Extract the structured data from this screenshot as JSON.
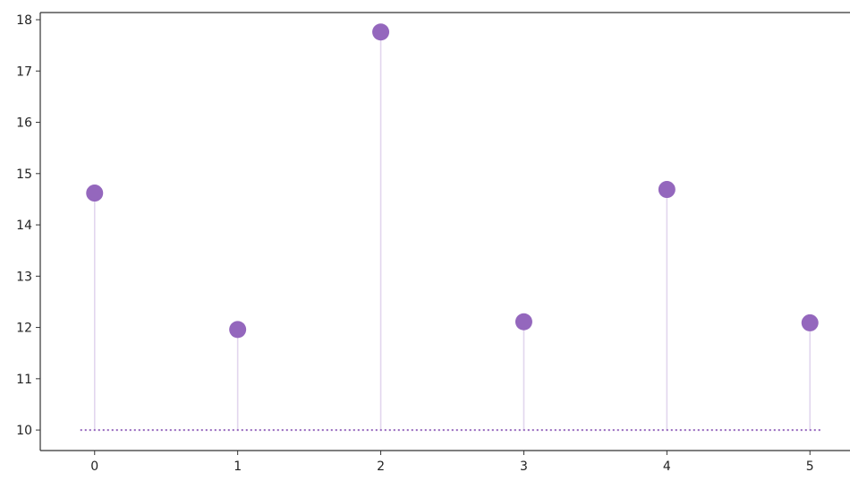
{
  "chart_data": {
    "type": "stem",
    "title": "",
    "xlabel": "",
    "ylabel": "",
    "x": [
      0,
      1,
      2,
      3,
      4,
      5
    ],
    "values": [
      14.62,
      11.96,
      17.76,
      12.11,
      14.69,
      12.09
    ],
    "baseline": 10,
    "xlim": [
      -0.38,
      5.28
    ],
    "ylim": [
      9.6,
      18.14
    ],
    "xticks": [
      0,
      1,
      2,
      3,
      4,
      5
    ],
    "yticks": [
      10,
      11,
      12,
      13,
      14,
      15,
      16,
      17,
      18
    ],
    "xtick_labels": [
      "0",
      "1",
      "2",
      "3",
      "4",
      "5"
    ],
    "ytick_labels": [
      "10",
      "11",
      "12",
      "13",
      "14",
      "15",
      "16",
      "17",
      "18"
    ],
    "grid": false,
    "legend": "none",
    "colors": {
      "marker": "#9467bd",
      "stem": "#e2d6ee",
      "baseline": "#9467bd",
      "axes": "#333333",
      "text": "#222222"
    }
  }
}
